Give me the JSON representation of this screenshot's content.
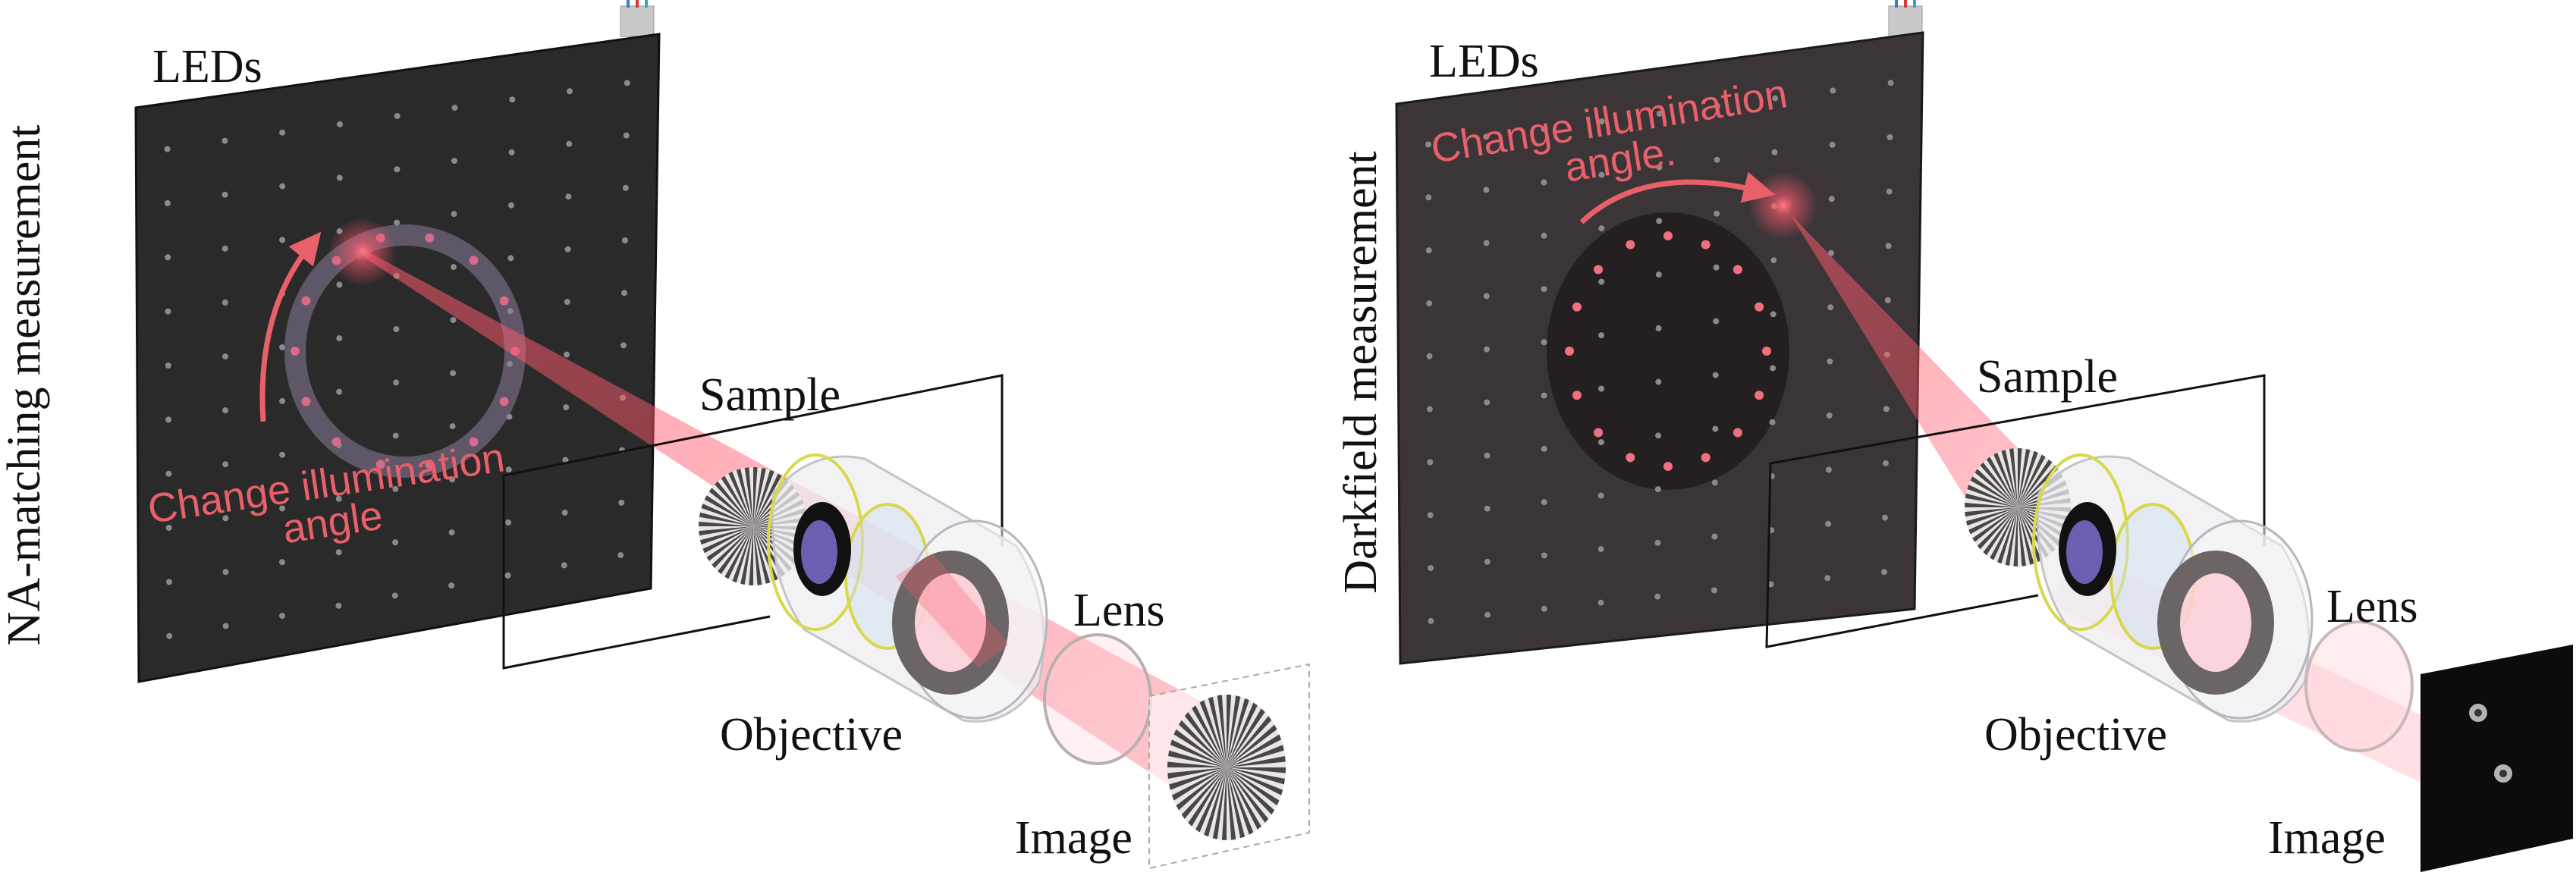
{
  "panels": [
    {
      "side_label": "NA-matching measurement",
      "leds_label": "LEDs",
      "annotation_line1": "Change illumination",
      "annotation_line2": "angle",
      "sample_label": "Sample",
      "objective_label": "Objective",
      "lens_label": "Lens",
      "image_label": "Image"
    },
    {
      "side_label": "Darkfield measurement",
      "leds_label": "LEDs",
      "annotation_line1": "Change illumination",
      "annotation_line2": "angle.",
      "sample_label": "Sample",
      "objective_label": "Objective",
      "lens_label": "Lens",
      "image_label": "Image"
    }
  ],
  "colors": {
    "led_board_left": "#2b2a2a",
    "led_board_right": "#3b3538",
    "beam": "#ff5a6e",
    "annotation": "#e8606a",
    "objective_ring": "#d8d84a",
    "aperture": "#6a5fb0"
  }
}
